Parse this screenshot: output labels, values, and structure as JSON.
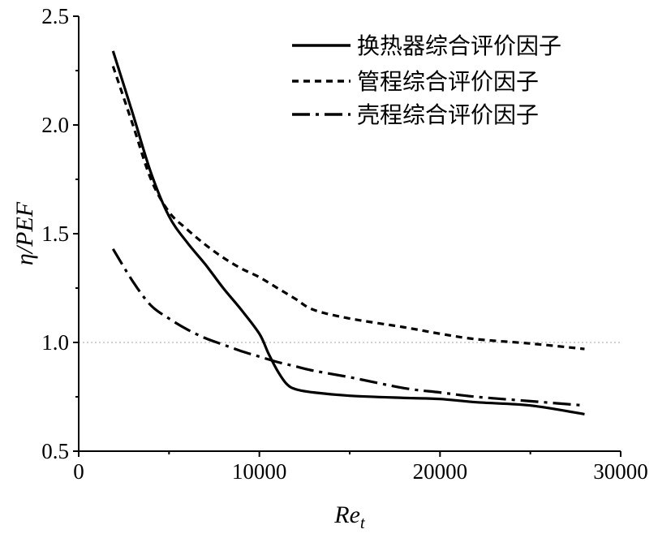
{
  "chart_data": {
    "type": "line",
    "title": "",
    "xlabel": "Re_t",
    "xlabel_main": "Re",
    "xlabel_sub": "t",
    "ylabel": "η/PEF",
    "ylabel_greek": "η",
    "ylabel_rest": "/PEF",
    "xlim": [
      0,
      30000
    ],
    "ylim": [
      0.5,
      2.5
    ],
    "xticks": [
      0,
      10000,
      20000,
      30000
    ],
    "xtick_labels": [
      "0",
      "10000",
      "20000",
      "30000"
    ],
    "yticks": [
      0.5,
      1.0,
      1.5,
      2.0,
      2.5
    ],
    "ytick_labels": [
      "0.5",
      "1.0",
      "1.5",
      "2.0",
      "2.5"
    ],
    "reference_line": 1.0,
    "grid": false,
    "legend_position": "top-right",
    "series": [
      {
        "name": "换热器综合评价因子",
        "style": "solid",
        "x": [
          1900,
          3000,
          4000,
          5000,
          6000,
          7000,
          8000,
          9000,
          10000,
          10500,
          11000,
          11500,
          12000,
          13000,
          15000,
          18000,
          20000,
          22000,
          25000,
          28000
        ],
        "y": [
          2.34,
          2.05,
          1.78,
          1.58,
          1.46,
          1.36,
          1.25,
          1.15,
          1.04,
          0.95,
          0.87,
          0.81,
          0.785,
          0.77,
          0.755,
          0.745,
          0.74,
          0.725,
          0.71,
          0.67
        ]
      },
      {
        "name": "管程综合评价因子",
        "style": "dashed",
        "x": [
          1900,
          3000,
          4000,
          5000,
          6000,
          7000,
          8000,
          9000,
          10000,
          11000,
          12000,
          13000,
          15000,
          18000,
          20000,
          22000,
          25000,
          28000
        ],
        "y": [
          2.27,
          2.0,
          1.75,
          1.6,
          1.52,
          1.45,
          1.39,
          1.34,
          1.3,
          1.25,
          1.2,
          1.15,
          1.11,
          1.07,
          1.04,
          1.015,
          0.995,
          0.97
        ]
      },
      {
        "name": "壳程综合评价因子",
        "style": "dashdot",
        "x": [
          1900,
          3000,
          4000,
          5000,
          6000,
          7000,
          8000,
          9000,
          10000,
          11000,
          12000,
          13000,
          15000,
          18000,
          20000,
          22000,
          25000,
          28000
        ],
        "y": [
          1.43,
          1.28,
          1.17,
          1.11,
          1.06,
          1.02,
          0.99,
          0.96,
          0.935,
          0.91,
          0.89,
          0.87,
          0.84,
          0.79,
          0.77,
          0.75,
          0.73,
          0.71
        ]
      }
    ]
  }
}
